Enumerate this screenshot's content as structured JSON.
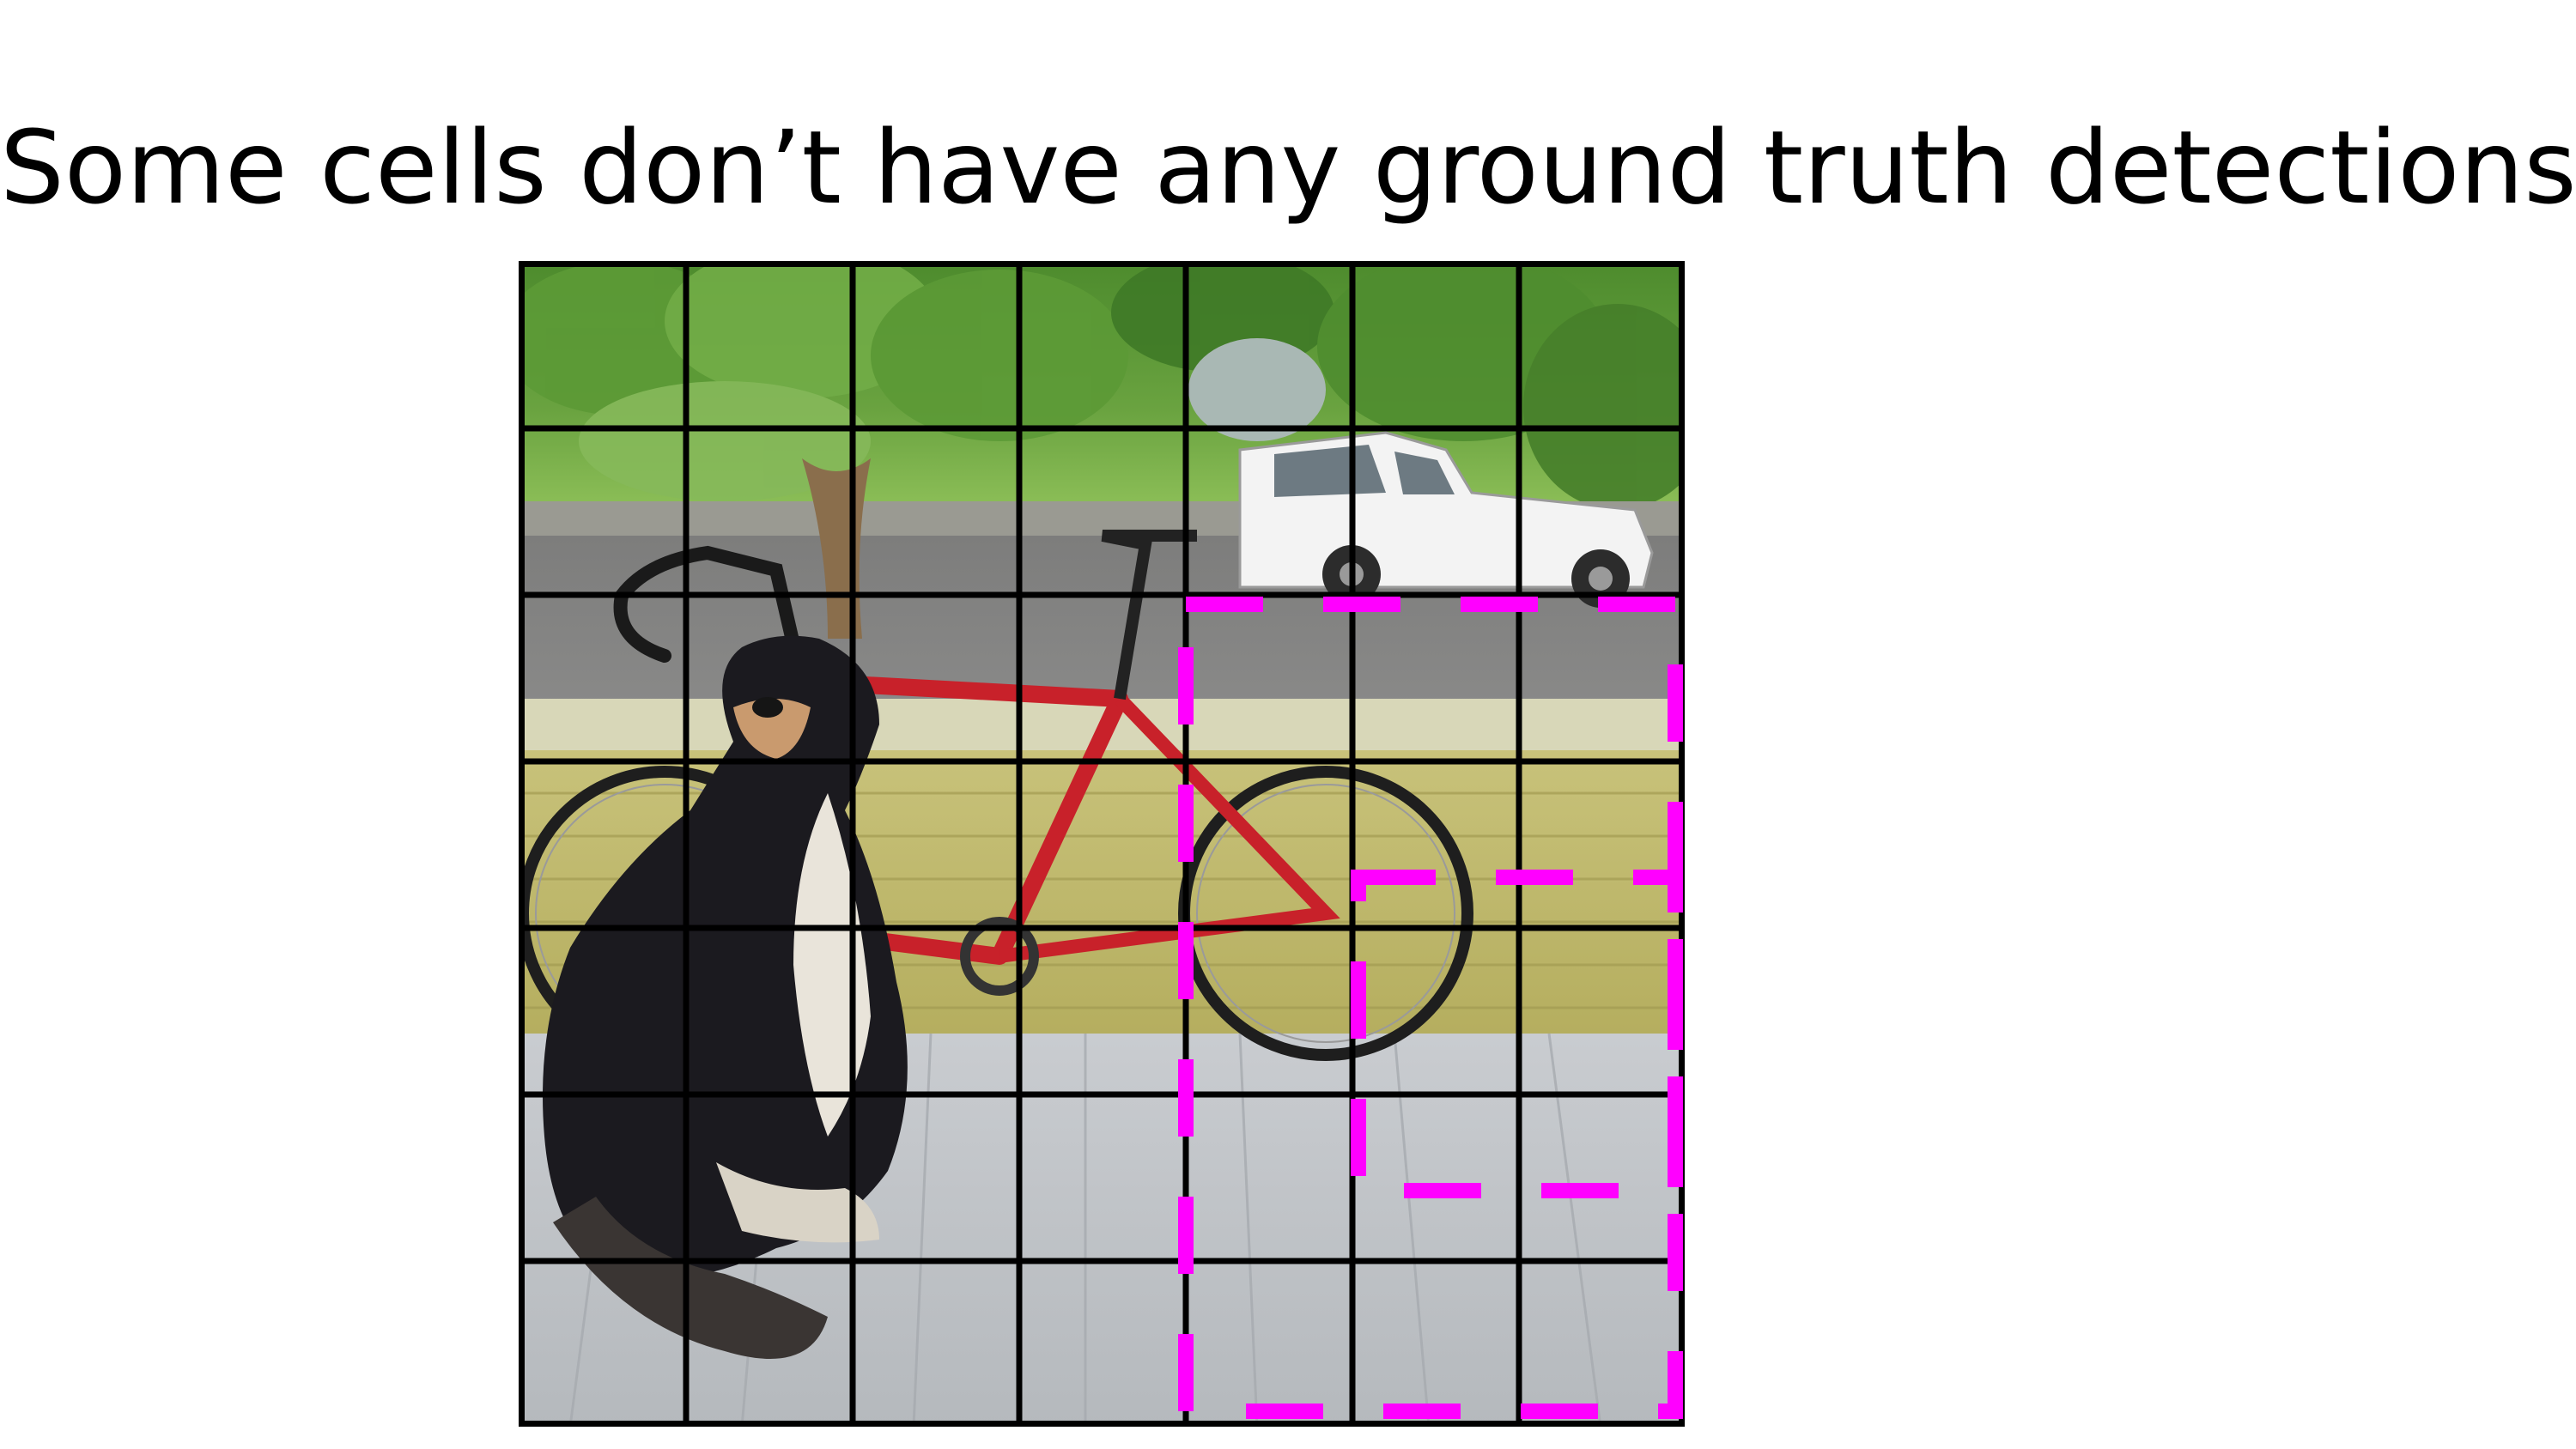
{
  "slide": {
    "title": "Some cells don’t have any ground truth detections!"
  },
  "figure": {
    "scene": "photo-dog-bicycle-car",
    "grid": {
      "rows": 7,
      "cols": 7,
      "line_color": "#000000"
    },
    "highlight_boxes": [
      {
        "name": "large-dashed-box",
        "color": "#ff00ff",
        "cells": {
          "col_start": 4,
          "col_end": 7,
          "row_start": 2,
          "row_end": 7
        }
      },
      {
        "name": "small-dashed-box",
        "color": "#ff00ff",
        "cells": {
          "col_start": 5,
          "col_end": 7,
          "row_start": 3.7,
          "row_end": 5.5
        }
      }
    ]
  },
  "colors": {
    "background": "#ffffff",
    "text": "#000000",
    "highlight": "#ff00ff",
    "grid": "#000000"
  }
}
